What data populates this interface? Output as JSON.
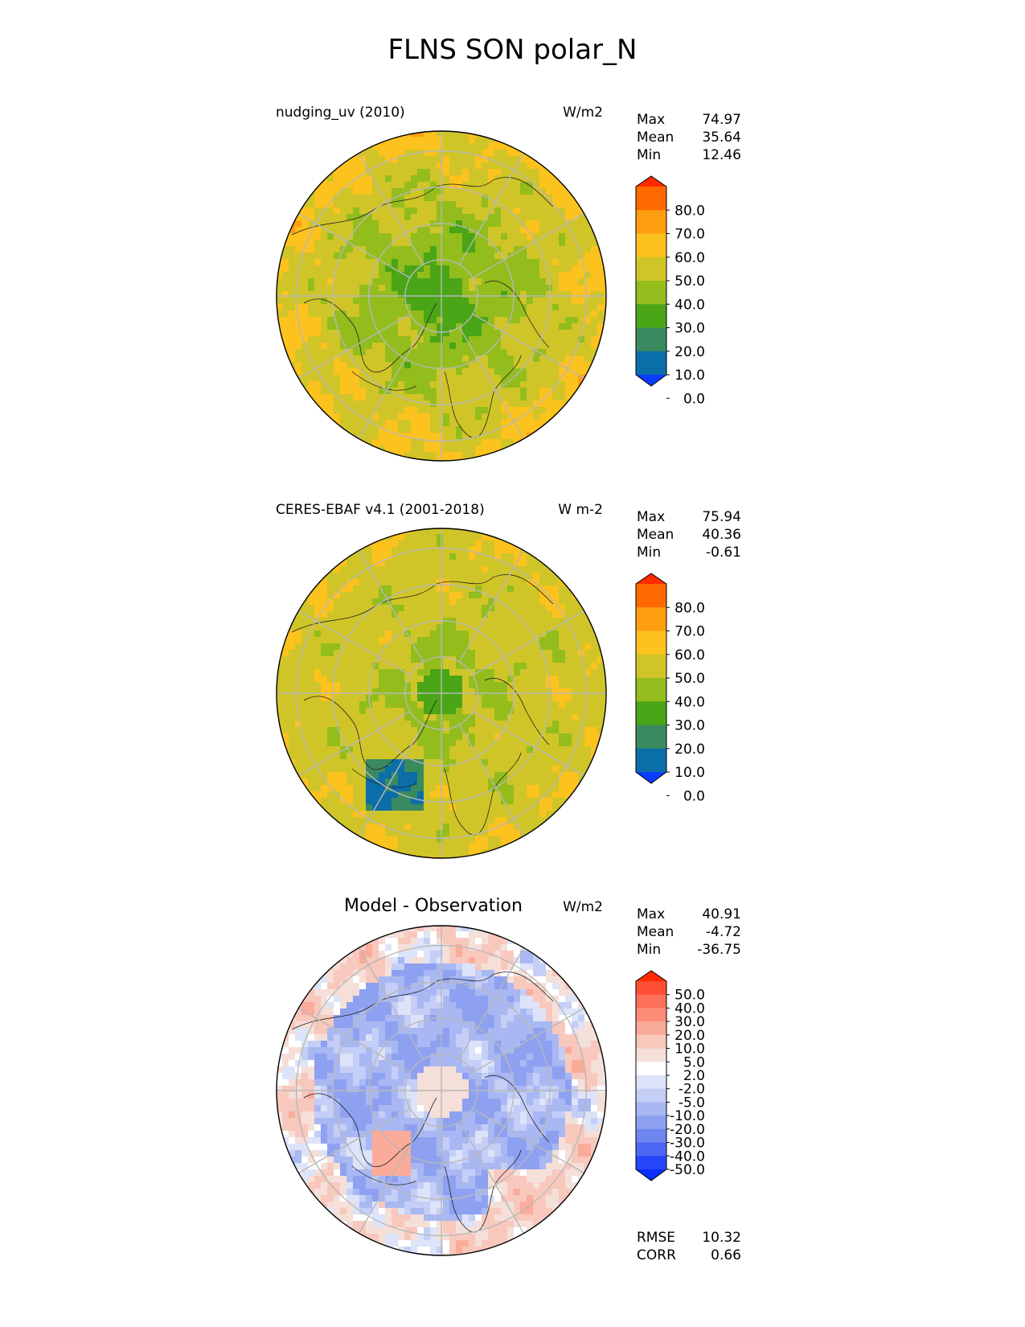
{
  "figure": {
    "title": "FLNS SON polar_N"
  },
  "panels": [
    {
      "title_left": "nudging_uv (2010)",
      "title_center": "",
      "units": "W/m2",
      "stats": [
        {
          "label": "Max",
          "value": "74.97"
        },
        {
          "label": "Mean",
          "value": "35.64"
        },
        {
          "label": "Min",
          "value": "12.46"
        }
      ],
      "colorbar": {
        "ticks": [
          "80.0",
          "70.0",
          "60.0",
          "50.0",
          "40.0",
          "30.0",
          "20.0",
          "10.0",
          "0.0"
        ],
        "colors_top_to_bottom": [
          "#ff2a00",
          "#ff6a00",
          "#ff9d10",
          "#fcc21e",
          "#d0c528",
          "#93bd1c",
          "#4aa517",
          "#3a8a5f",
          "#0b6ea8",
          "#0a3cff"
        ]
      }
    },
    {
      "title_left": "CERES-EBAF v4.1 (2001-2018)",
      "title_center": "",
      "units": "W m-2",
      "stats": [
        {
          "label": "Max",
          "value": "75.94"
        },
        {
          "label": "Mean",
          "value": "40.36"
        },
        {
          "label": "Min",
          "value": "-0.61"
        }
      ],
      "colorbar": {
        "ticks": [
          "80.0",
          "70.0",
          "60.0",
          "50.0",
          "40.0",
          "30.0",
          "20.0",
          "10.0",
          "0.0"
        ],
        "colors_top_to_bottom": [
          "#ff2a00",
          "#ff6a00",
          "#ff9d10",
          "#fcc21e",
          "#d0c528",
          "#93bd1c",
          "#4aa517",
          "#3a8a5f",
          "#0b6ea8",
          "#0a3cff"
        ]
      }
    },
    {
      "title_left": "",
      "title_center": "Model - Observation",
      "units": "W/m2",
      "stats": [
        {
          "label": "Max",
          "value": "40.91"
        },
        {
          "label": "Mean",
          "value": "-4.72"
        },
        {
          "label": "Min",
          "value": "-36.75"
        }
      ],
      "colorbar": {
        "ticks": [
          "50.0",
          "40.0",
          "30.0",
          "20.0",
          "10.0",
          "5.0",
          "2.0",
          "-2.0",
          "-5.0",
          "-10.0",
          "-20.0",
          "-30.0",
          "-40.0",
          "-50.0"
        ],
        "colors_top_to_bottom": [
          "#ff2a00",
          "#ff4d36",
          "#fe6f5a",
          "#fd8c78",
          "#fbab9a",
          "#f8c8bd",
          "#f5dfd9",
          "#ffffff",
          "#dde3f8",
          "#c4cef6",
          "#a9b8f3",
          "#8ea1f1",
          "#6e86ef",
          "#4c67f3",
          "#2646fb",
          "#0a2fff"
        ]
      }
    }
  ],
  "footer_stats": [
    {
      "label": "RMSE",
      "value": "10.32"
    },
    {
      "label": "CORR",
      "value": "0.66"
    }
  ]
}
